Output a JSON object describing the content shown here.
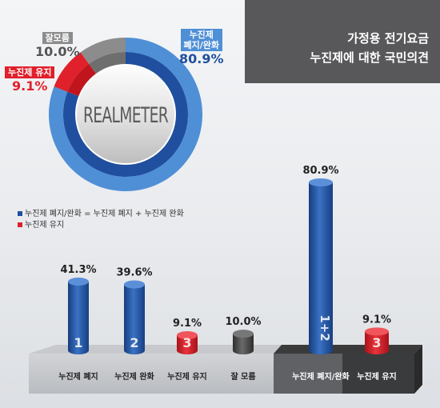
{
  "title": {
    "line1": "가정용 전기요금",
    "line2": "누진제에 대한 국민의견"
  },
  "logo": "REALMETER",
  "colors": {
    "blue": "#1f4f9e",
    "blue_light": "#4f8fd6",
    "red": "#e0202a",
    "gray": "#8c8c8c",
    "dark": "#454545"
  },
  "chart_data": [
    {
      "type": "pie",
      "slices": [
        {
          "label": "누진제 폐지/완화",
          "label_lines": [
            "누진제",
            "폐지/완화"
          ],
          "value": 80.9,
          "value_text": "80.9%"
        },
        {
          "label": "누진제 유지",
          "value": 9.1,
          "value_text": "9.1%"
        },
        {
          "label": "잘모름",
          "value": 10.0,
          "value_text": "10.0%"
        }
      ]
    },
    {
      "type": "bar",
      "legend": [
        {
          "text": "누진제 폐지/완화 = 누진제 폐지 + 누진제 완화"
        },
        {
          "text": "누진제 유지"
        }
      ],
      "bars": [
        {
          "category": "누진제 폐지",
          "value": 41.3,
          "value_text": "41.3%",
          "marker": "1",
          "color": "blue"
        },
        {
          "category": "누진제 완화",
          "value": 39.6,
          "value_text": "39.6%",
          "marker": "2",
          "color": "blue"
        },
        {
          "category": "누진제 유지",
          "value": 9.1,
          "value_text": "9.1%",
          "marker": "3",
          "color": "red"
        },
        {
          "category": "잘 모름",
          "value": 10.0,
          "value_text": "10.0%",
          "marker": "",
          "color": "dark"
        }
      ],
      "summary_bars": [
        {
          "category": "누진제 폐지/완화",
          "value": 80.9,
          "value_text": "80.9%",
          "marker": "1+2",
          "color": "blue"
        },
        {
          "category": "누진제 유지",
          "value": 9.1,
          "value_text": "9.1%",
          "marker": "3",
          "color": "red"
        }
      ]
    }
  ]
}
